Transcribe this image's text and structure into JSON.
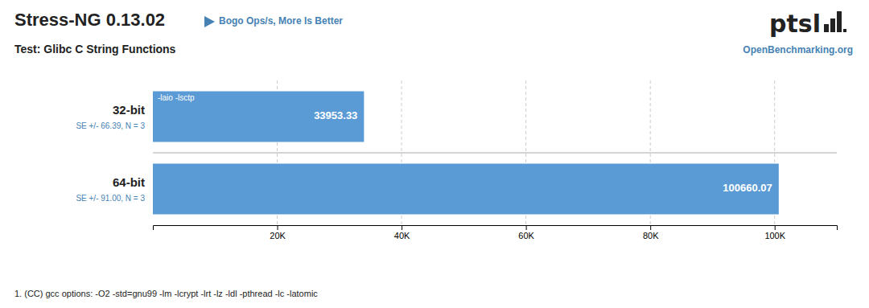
{
  "chart_data": {
    "type": "bar",
    "orientation": "horizontal",
    "title": "Stress-NG 0.13.02",
    "subtitle": "Test: Glibc C String Functions",
    "metric_label": "Bogo Ops/s, More Is Better",
    "source": "OpenBenchmarking.org",
    "logo": "ptsl",
    "categories": [
      "32-bit",
      "64-bit"
    ],
    "values": [
      33953.33,
      100660.07
    ],
    "se_labels": [
      "SE +/- 66.39, N = 3",
      "SE +/- 91.00, N = 3"
    ],
    "bar_notes": [
      "-laio -lsctp",
      null
    ],
    "color": "#5b9bd5",
    "data_labels": true,
    "xlim": [
      0,
      110000
    ],
    "xticks": [
      {
        "value": 20000,
        "label": "20K"
      },
      {
        "value": 40000,
        "label": "40K"
      },
      {
        "value": 60000,
        "label": "60K"
      },
      {
        "value": 80000,
        "label": "80K"
      },
      {
        "value": 100000,
        "label": "100K"
      }
    ],
    "grid": true,
    "footnote": "1. (CC) gcc options: -O2 -std=gnu99 -lm -lcrypt -lrt -lz -ldl -pthread -lc -latomic"
  }
}
